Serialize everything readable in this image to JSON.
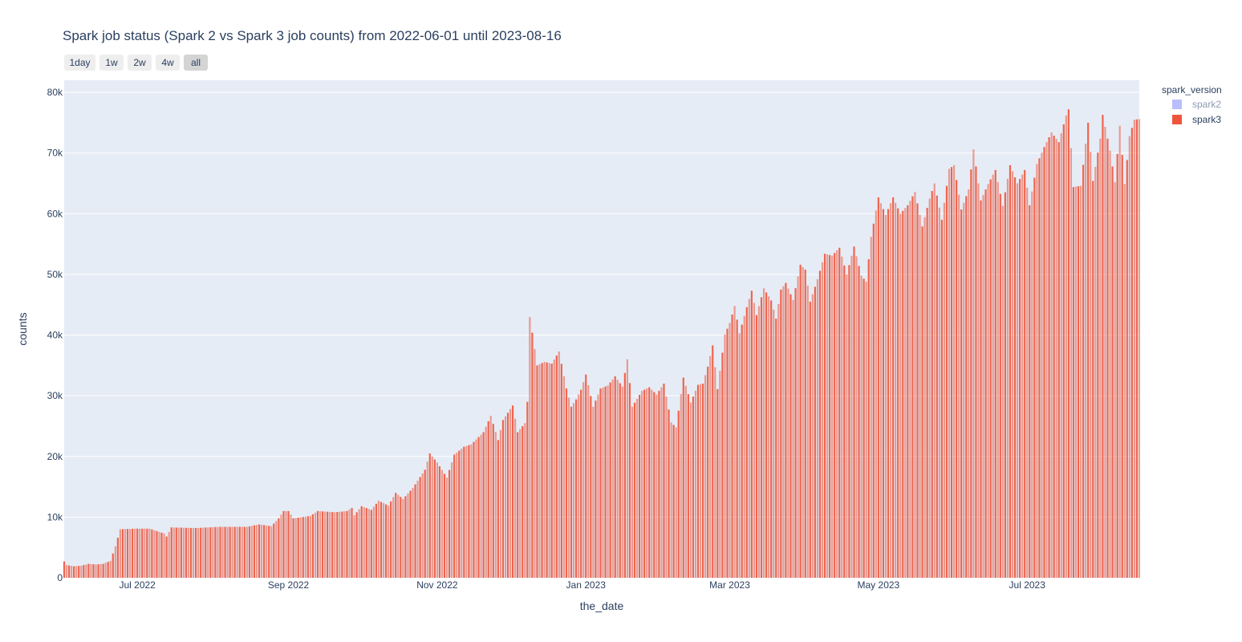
{
  "chart_data": {
    "type": "bar",
    "title": "Spark job status (Spark 2 vs Spark 3 job counts) from 2022-06-01 until 2023-08-16",
    "xlabel": "the_date",
    "ylabel": "counts",
    "x_range": [
      "2022-06-01",
      "2023-08-16"
    ],
    "ylim": [
      0,
      82000
    ],
    "y_ticks": [
      0,
      10000,
      20000,
      30000,
      40000,
      50000,
      60000,
      70000,
      80000
    ],
    "y_tick_labels": [
      "0",
      "10k",
      "20k",
      "30k",
      "40k",
      "50k",
      "60k",
      "70k",
      "80k"
    ],
    "x_ticks": [
      "2022-07-01",
      "2022-09-01",
      "2022-11-01",
      "2023-01-01",
      "2023-03-01",
      "2023-05-01",
      "2023-07-01"
    ],
    "x_tick_labels": [
      "Jul 2022",
      "Sep 2022",
      "Nov 2022",
      "Jan 2023",
      "Mar 2023",
      "May 2023",
      "Jul 2023"
    ],
    "legend": {
      "title": "spark_version",
      "position": "top-right"
    },
    "grid": true,
    "range_selector": {
      "buttons": [
        "1day",
        "1w",
        "2w",
        "4w",
        "all"
      ],
      "active": "all"
    },
    "series": [
      {
        "name": "spark2",
        "color": "#636efa",
        "visible": false,
        "points": []
      },
      {
        "name": "spark3",
        "color": "#ef553b",
        "visible": true,
        "points": [
          [
            "2022-06-01",
            2700
          ],
          [
            "2022-06-02",
            2100
          ],
          [
            "2022-06-05",
            1900
          ],
          [
            "2022-06-08",
            2000
          ],
          [
            "2022-06-11",
            2300
          ],
          [
            "2022-06-14",
            2200
          ],
          [
            "2022-06-17",
            2300
          ],
          [
            "2022-06-20",
            2800
          ],
          [
            "2022-06-22",
            5200
          ],
          [
            "2022-06-23",
            6600
          ],
          [
            "2022-06-24",
            8000
          ],
          [
            "2022-06-30",
            8100
          ],
          [
            "2022-07-06",
            8100
          ],
          [
            "2022-07-12",
            7300
          ],
          [
            "2022-07-13",
            6800
          ],
          [
            "2022-07-15",
            8300
          ],
          [
            "2022-07-25",
            8200
          ],
          [
            "2022-08-04",
            8400
          ],
          [
            "2022-08-15",
            8400
          ],
          [
            "2022-08-20",
            8800
          ],
          [
            "2022-08-25",
            8500
          ],
          [
            "2022-08-28",
            9800
          ],
          [
            "2022-08-30",
            11000
          ],
          [
            "2022-09-01",
            11000
          ],
          [
            "2022-09-03",
            9800
          ],
          [
            "2022-09-10",
            10200
          ],
          [
            "2022-09-13",
            11000
          ],
          [
            "2022-09-20",
            10800
          ],
          [
            "2022-09-25",
            11000
          ],
          [
            "2022-09-27",
            11500
          ],
          [
            "2022-09-28",
            10300
          ],
          [
            "2022-10-01",
            11800
          ],
          [
            "2022-10-05",
            11200
          ],
          [
            "2022-10-08",
            12700
          ],
          [
            "2022-10-12",
            11900
          ],
          [
            "2022-10-15",
            14000
          ],
          [
            "2022-10-18",
            13000
          ],
          [
            "2022-10-22",
            14800
          ],
          [
            "2022-10-27",
            17800
          ],
          [
            "2022-10-29",
            20500
          ],
          [
            "2022-11-01",
            19000
          ],
          [
            "2022-11-05",
            16500
          ],
          [
            "2022-11-08",
            20300
          ],
          [
            "2022-11-12",
            21600
          ],
          [
            "2022-11-15",
            22000
          ],
          [
            "2022-11-20",
            24000
          ],
          [
            "2022-11-23",
            26700
          ],
          [
            "2022-11-26",
            22700
          ],
          [
            "2022-11-28",
            26000
          ],
          [
            "2022-12-02",
            28400
          ],
          [
            "2022-12-04",
            24000
          ],
          [
            "2022-12-07",
            25500
          ],
          [
            "2022-12-08",
            29000
          ],
          [
            "2022-12-09",
            43000
          ],
          [
            "2022-12-10",
            40400
          ],
          [
            "2022-12-12",
            35000
          ],
          [
            "2022-12-15",
            35600
          ],
          [
            "2022-12-18",
            35300
          ],
          [
            "2022-12-21",
            37300
          ],
          [
            "2022-12-24",
            31200
          ],
          [
            "2022-12-26",
            28200
          ],
          [
            "2022-12-28",
            29400
          ],
          [
            "2022-12-30",
            31000
          ],
          [
            "2023-01-01",
            33500
          ],
          [
            "2023-01-04",
            28200
          ],
          [
            "2023-01-07",
            31200
          ],
          [
            "2023-01-10",
            31700
          ],
          [
            "2023-01-13",
            33200
          ],
          [
            "2023-01-16",
            31500
          ],
          [
            "2023-01-18",
            36000
          ],
          [
            "2023-01-20",
            28200
          ],
          [
            "2023-01-24",
            30800
          ],
          [
            "2023-01-27",
            31400
          ],
          [
            "2023-01-30",
            30200
          ],
          [
            "2023-02-02",
            32000
          ],
          [
            "2023-02-05",
            25600
          ],
          [
            "2023-02-07",
            24800
          ],
          [
            "2023-02-10",
            33000
          ],
          [
            "2023-02-13",
            28900
          ],
          [
            "2023-02-16",
            31800
          ],
          [
            "2023-02-18",
            32000
          ],
          [
            "2023-02-20",
            34800
          ],
          [
            "2023-02-22",
            38300
          ],
          [
            "2023-02-24",
            31100
          ],
          [
            "2023-02-27",
            40100
          ],
          [
            "2023-03-01",
            42000
          ],
          [
            "2023-03-03",
            44800
          ],
          [
            "2023-03-05",
            40300
          ],
          [
            "2023-03-08",
            44600
          ],
          [
            "2023-03-10",
            47300
          ],
          [
            "2023-03-12",
            43300
          ],
          [
            "2023-03-15",
            47700
          ],
          [
            "2023-03-18",
            45700
          ],
          [
            "2023-03-20",
            42700
          ],
          [
            "2023-03-22",
            47500
          ],
          [
            "2023-03-24",
            48600
          ],
          [
            "2023-03-27",
            45800
          ],
          [
            "2023-03-30",
            51600
          ],
          [
            "2023-04-01",
            50800
          ],
          [
            "2023-04-03",
            45500
          ],
          [
            "2023-04-06",
            49200
          ],
          [
            "2023-04-09",
            53400
          ],
          [
            "2023-04-12",
            53100
          ],
          [
            "2023-04-15",
            54400
          ],
          [
            "2023-04-18",
            50000
          ],
          [
            "2023-04-21",
            54600
          ],
          [
            "2023-04-24",
            49800
          ],
          [
            "2023-04-26",
            48800
          ],
          [
            "2023-04-28",
            56200
          ],
          [
            "2023-05-01",
            62700
          ],
          [
            "2023-05-04",
            59800
          ],
          [
            "2023-05-07",
            62700
          ],
          [
            "2023-05-10",
            60000
          ],
          [
            "2023-05-13",
            61400
          ],
          [
            "2023-05-16",
            63600
          ],
          [
            "2023-05-19",
            57900
          ],
          [
            "2023-05-22",
            62500
          ],
          [
            "2023-05-24",
            65000
          ],
          [
            "2023-05-27",
            59000
          ],
          [
            "2023-05-30",
            67400
          ],
          [
            "2023-06-01",
            68000
          ],
          [
            "2023-06-04",
            60700
          ],
          [
            "2023-06-07",
            64000
          ],
          [
            "2023-06-09",
            70600
          ],
          [
            "2023-06-12",
            62200
          ],
          [
            "2023-06-15",
            64900
          ],
          [
            "2023-06-18",
            67200
          ],
          [
            "2023-06-21",
            61300
          ],
          [
            "2023-06-24",
            68000
          ],
          [
            "2023-06-27",
            65000
          ],
          [
            "2023-06-30",
            67200
          ],
          [
            "2023-07-02",
            61400
          ],
          [
            "2023-07-05",
            68200
          ],
          [
            "2023-07-08",
            71000
          ],
          [
            "2023-07-11",
            73400
          ],
          [
            "2023-07-14",
            71800
          ],
          [
            "2023-07-17",
            76200
          ],
          [
            "2023-07-18",
            77200
          ],
          [
            "2023-07-20",
            64400
          ],
          [
            "2023-07-23",
            64600
          ],
          [
            "2023-07-26",
            75000
          ],
          [
            "2023-07-28",
            65400
          ],
          [
            "2023-07-31",
            72400
          ],
          [
            "2023-08-01",
            76300
          ],
          [
            "2023-08-04",
            70400
          ],
          [
            "2023-08-06",
            65200
          ],
          [
            "2023-08-08",
            74500
          ],
          [
            "2023-08-10",
            64900
          ],
          [
            "2023-08-12",
            72800
          ],
          [
            "2023-08-14",
            75500
          ],
          [
            "2023-08-16",
            75600
          ]
        ]
      }
    ]
  }
}
